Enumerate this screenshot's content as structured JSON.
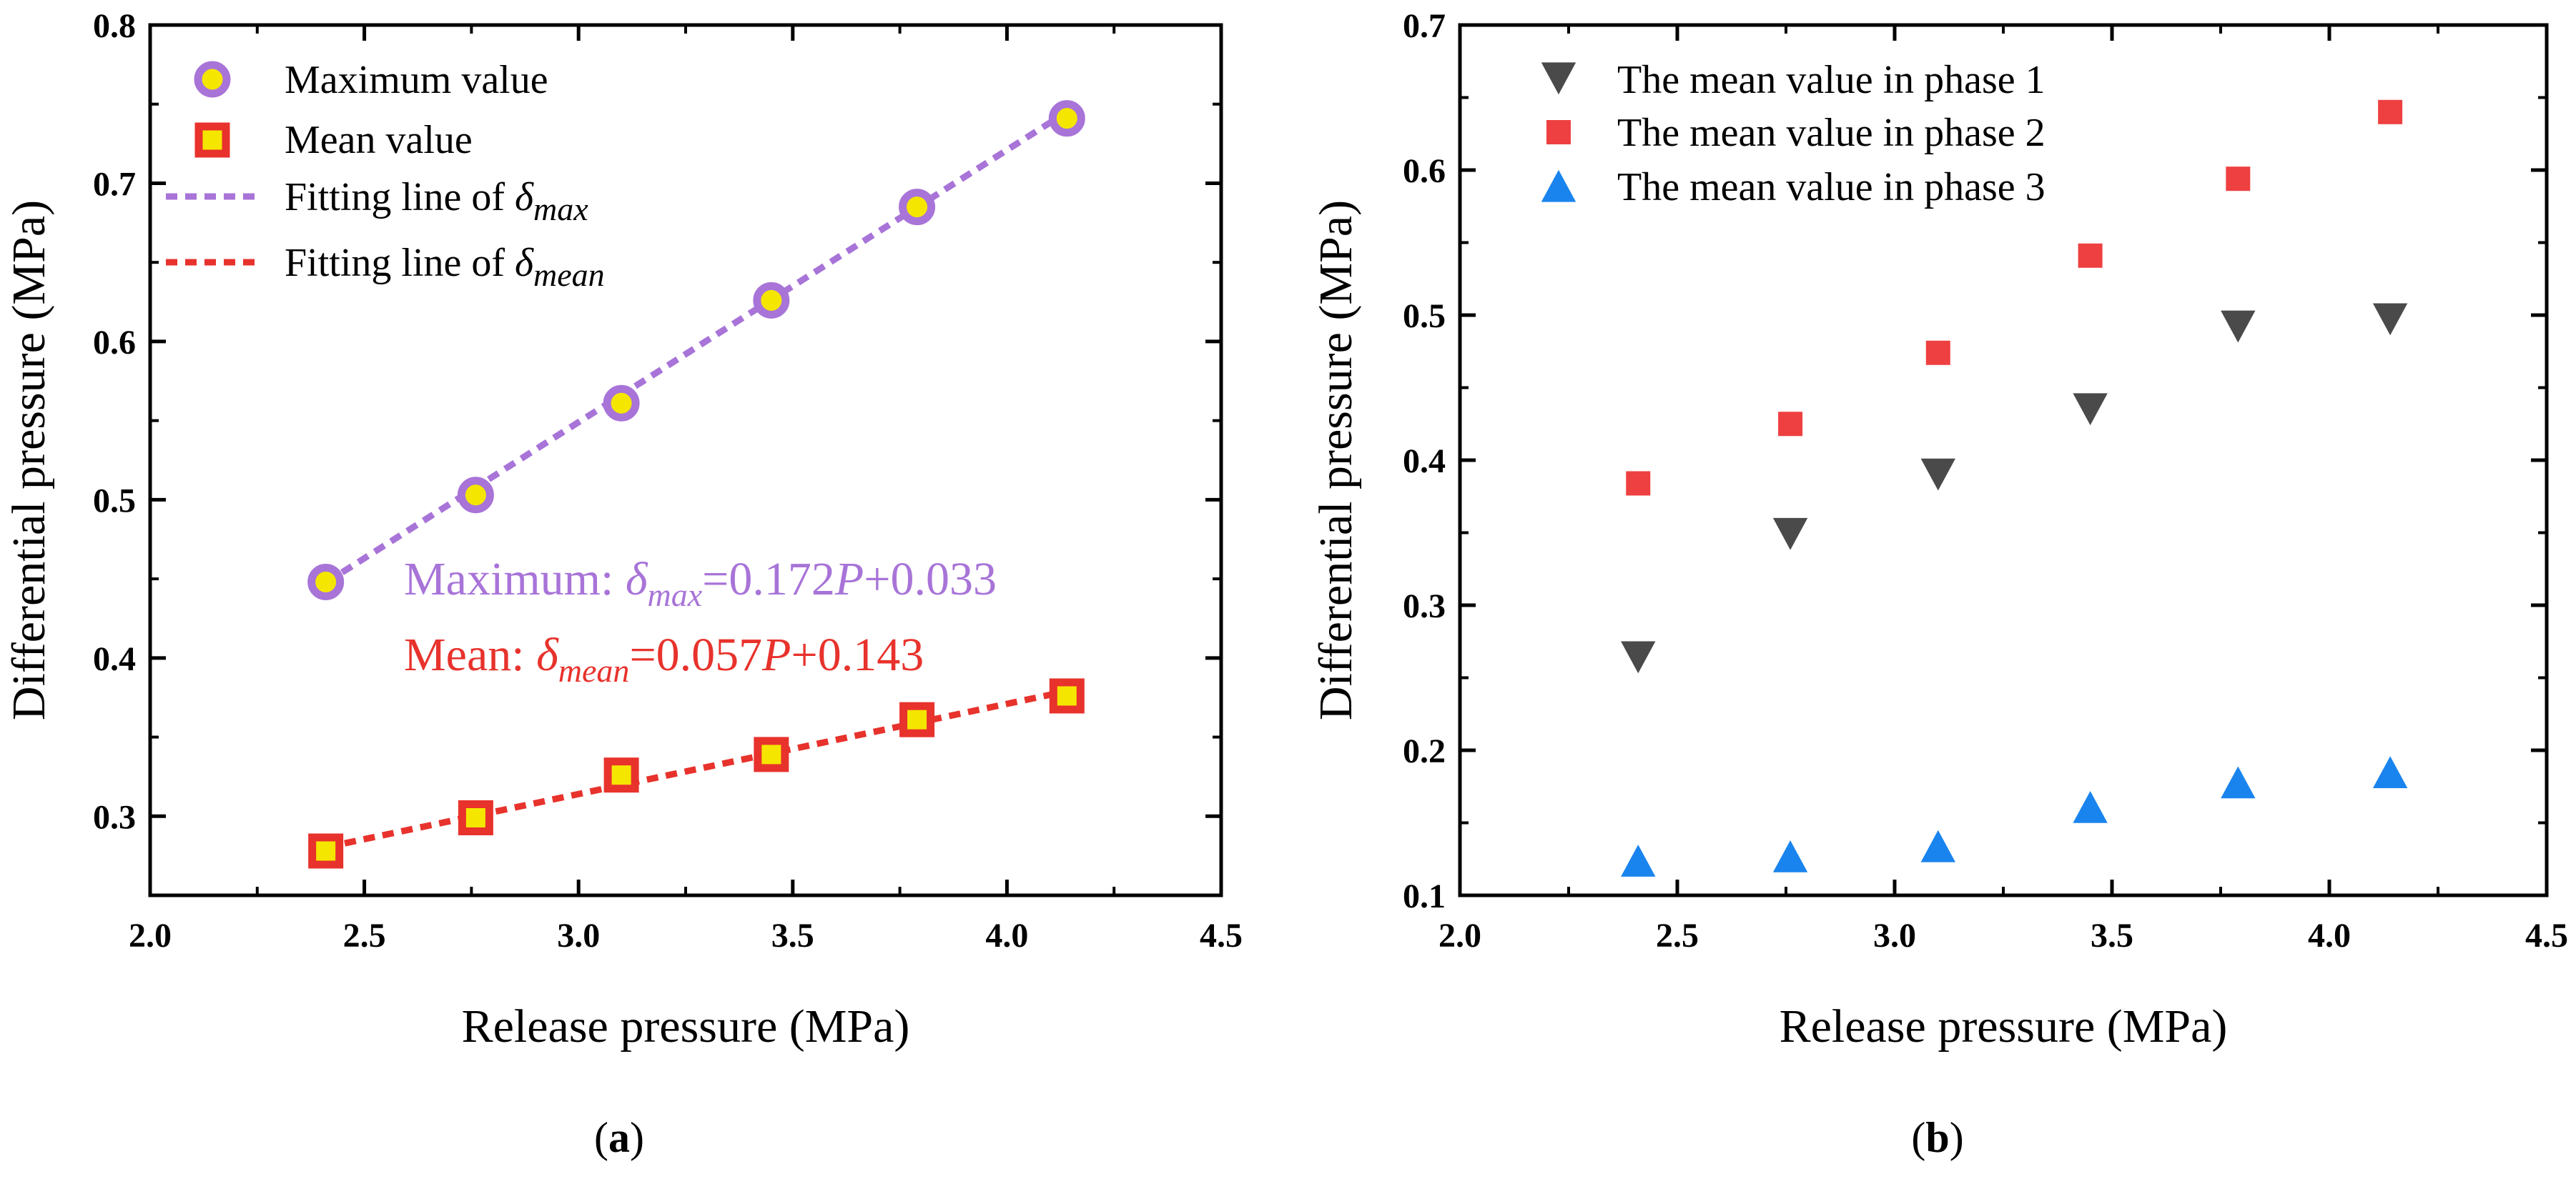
{
  "colors": {
    "max": "#a874d8",
    "max_fill": "#f5e600",
    "mean": "#e8322c",
    "mean_fill": "#f5e600",
    "phase1": "#4a4a4a",
    "phase2": "#ee4040",
    "phase3": "#1a84ee"
  },
  "chart_data": [
    {
      "type": "scatter",
      "panel": "a",
      "panel_label_open": "(",
      "panel_label_letter": "a",
      "panel_label_close": ")",
      "xlabel": "Release pressure (MPa)",
      "ylabel": "Differential pressure (MPa)",
      "xlim": [
        2.0,
        4.5
      ],
      "ylim": [
        0.25,
        0.8
      ],
      "xticks": [
        "2.0",
        "2.5",
        "3.0",
        "3.5",
        "4.0",
        "4.5"
      ],
      "yticks": [
        "0.3",
        "0.4",
        "0.5",
        "0.6",
        "0.7",
        "0.8"
      ],
      "legend_position": "top-left",
      "series": [
        {
          "name": "Maximum value",
          "marker": "circle",
          "color": "#a874d8",
          "x": [
            2.41,
            2.76,
            3.1,
            3.45,
            3.79,
            4.14
          ],
          "y": [
            0.448,
            0.503,
            0.561,
            0.626,
            0.685,
            0.741
          ]
        },
        {
          "name": "Mean value",
          "marker": "square",
          "color": "#e8322c",
          "x": [
            2.41,
            2.76,
            3.1,
            3.45,
            3.79,
            4.14
          ],
          "y": [
            0.278,
            0.299,
            0.326,
            0.339,
            0.361,
            0.376
          ]
        }
      ],
      "fits": [
        {
          "legend_prefix": "Fitting line of ",
          "symbol": "δ",
          "subscript": "max",
          "color": "#a874d8",
          "slope": 0.172,
          "intercept": 0.033,
          "x_range": [
            2.41,
            4.14
          ]
        },
        {
          "legend_prefix": "Fitting line of ",
          "symbol": "δ",
          "subscript": "mean",
          "color": "#e8322c",
          "slope": 0.057,
          "intercept": 0.143,
          "x_range": [
            2.41,
            4.14
          ]
        }
      ],
      "annotations": [
        {
          "prefix": "Maximum: ",
          "symbol": "δ",
          "subscript": "max",
          "eq": "=0.172",
          "var": "P",
          "tail": "+0.033",
          "color": "#a874d8"
        },
        {
          "prefix": "Mean: ",
          "symbol": "δ",
          "subscript": "mean",
          "eq": "=0.057",
          "var": "P",
          "tail": "+0.143",
          "color": "#e8322c"
        }
      ]
    },
    {
      "type": "scatter",
      "panel": "b",
      "panel_label_open": "(",
      "panel_label_letter": "b",
      "panel_label_close": ")",
      "xlabel": "Release pressure (MPa)",
      "ylabel": "Differential pressure (MPa)",
      "xlim": [
        2.0,
        4.5
      ],
      "ylim": [
        0.1,
        0.7
      ],
      "xticks": [
        "2.0",
        "2.5",
        "3.0",
        "3.5",
        "4.0",
        "4.5"
      ],
      "yticks": [
        "0.1",
        "0.2",
        "0.3",
        "0.4",
        "0.5",
        "0.6",
        "0.7"
      ],
      "legend_position": "top-left",
      "series": [
        {
          "name": "The mean value in phase 1",
          "marker": "triangle-down",
          "color": "#4a4a4a",
          "x": [
            2.41,
            2.76,
            3.1,
            3.45,
            3.79,
            4.14
          ],
          "y": [
            0.265,
            0.35,
            0.391,
            0.436,
            0.493,
            0.498
          ]
        },
        {
          "name": "The mean value in phase 2",
          "marker": "square",
          "color": "#ee4040",
          "x": [
            2.41,
            2.76,
            3.1,
            3.45,
            3.79,
            4.14
          ],
          "y": [
            0.384,
            0.425,
            0.474,
            0.541,
            0.594,
            0.64
          ]
        },
        {
          "name": "The mean value in phase 3",
          "marker": "triangle-up",
          "color": "#1a84ee",
          "x": [
            2.41,
            2.76,
            3.1,
            3.45,
            3.79,
            4.14
          ],
          "y": [
            0.123,
            0.126,
            0.133,
            0.16,
            0.177,
            0.184
          ]
        }
      ]
    }
  ]
}
